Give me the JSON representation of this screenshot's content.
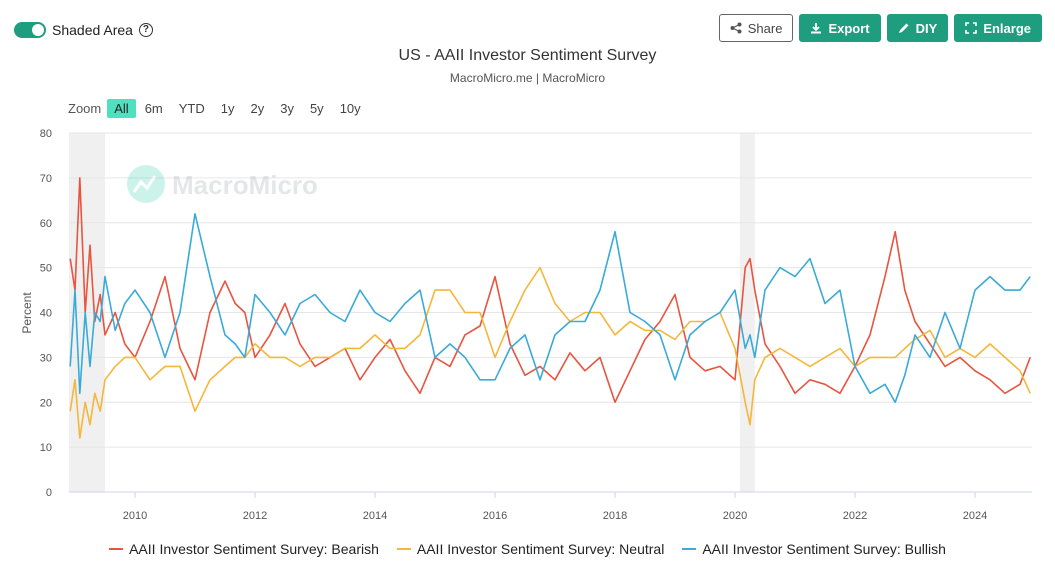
{
  "toggle": {
    "label": "Shaded Area",
    "on": true
  },
  "toolbar": {
    "share": "Share",
    "export": "Export",
    "diy": "DIY",
    "enlarge": "Enlarge"
  },
  "colors": {
    "accent": "#1f9e7f",
    "bearish": "#e8543f",
    "neutral": "#f4b73c",
    "bullish": "#3aaad8",
    "shade": "#f0f0f0"
  },
  "zoom": {
    "label": "Zoom",
    "options": [
      "All",
      "6m",
      "YTD",
      "1y",
      "2y",
      "3y",
      "5y",
      "10y"
    ],
    "active": "All"
  },
  "watermark": "MacroMicro",
  "chart_data": {
    "type": "line",
    "title": "US - AAII Investor Sentiment Survey",
    "subtitle": "MacroMicro.me | MacroMicro",
    "ylabel": "Percent",
    "xlim": [
      2008.9,
      2024.95
    ],
    "ylim": [
      0,
      80
    ],
    "yticks": [
      0,
      10,
      20,
      30,
      40,
      50,
      60,
      70,
      80
    ],
    "xticks": [
      2010,
      2012,
      2014,
      2016,
      2018,
      2020,
      2022,
      2024
    ],
    "shaded_periods": [
      [
        2008.9,
        2009.5
      ],
      [
        2020.08,
        2020.33
      ]
    ],
    "grid": true,
    "legend_position": "bottom",
    "series": [
      {
        "name": "AAII Investor Sentiment Survey: Bearish",
        "color": "#e8543f",
        "x": [
          2008.92,
          2009.0,
          2009.08,
          2009.17,
          2009.25,
          2009.33,
          2009.42,
          2009.5,
          2009.67,
          2009.83,
          2010.0,
          2010.25,
          2010.5,
          2010.75,
          2011.0,
          2011.25,
          2011.5,
          2011.67,
          2011.83,
          2012.0,
          2012.25,
          2012.5,
          2012.75,
          2013.0,
          2013.25,
          2013.5,
          2013.75,
          2014.0,
          2014.25,
          2014.5,
          2014.75,
          2015.0,
          2015.25,
          2015.5,
          2015.75,
          2016.0,
          2016.25,
          2016.5,
          2016.75,
          2017.0,
          2017.25,
          2017.5,
          2017.75,
          2018.0,
          2018.25,
          2018.5,
          2018.75,
          2019.0,
          2019.25,
          2019.5,
          2019.75,
          2020.0,
          2020.17,
          2020.25,
          2020.33,
          2020.5,
          2020.75,
          2021.0,
          2021.25,
          2021.5,
          2021.75,
          2022.0,
          2022.25,
          2022.5,
          2022.67,
          2022.83,
          2023.0,
          2023.25,
          2023.5,
          2023.75,
          2024.0,
          2024.25,
          2024.5,
          2024.75,
          2024.92
        ],
        "values": [
          52,
          45,
          70,
          40,
          55,
          38,
          44,
          35,
          40,
          33,
          30,
          38,
          48,
          32,
          25,
          40,
          47,
          42,
          40,
          30,
          35,
          42,
          33,
          28,
          30,
          32,
          25,
          30,
          34,
          27,
          22,
          30,
          28,
          35,
          37,
          48,
          33,
          26,
          28,
          25,
          31,
          27,
          30,
          20,
          27,
          34,
          38,
          44,
          30,
          27,
          28,
          25,
          50,
          52,
          45,
          33,
          28,
          22,
          25,
          24,
          22,
          28,
          35,
          48,
          58,
          45,
          38,
          33,
          28,
          30,
          27,
          25,
          22,
          24,
          30
        ]
      },
      {
        "name": "AAII Investor Sentiment Survey: Neutral",
        "color": "#f4b73c",
        "x": [
          2008.92,
          2009.0,
          2009.08,
          2009.17,
          2009.25,
          2009.33,
          2009.42,
          2009.5,
          2009.67,
          2009.83,
          2010.0,
          2010.25,
          2010.5,
          2010.75,
          2011.0,
          2011.25,
          2011.5,
          2011.67,
          2011.83,
          2012.0,
          2012.25,
          2012.5,
          2012.75,
          2013.0,
          2013.25,
          2013.5,
          2013.75,
          2014.0,
          2014.25,
          2014.5,
          2014.75,
          2015.0,
          2015.25,
          2015.5,
          2015.75,
          2016.0,
          2016.25,
          2016.5,
          2016.75,
          2017.0,
          2017.25,
          2017.5,
          2017.75,
          2018.0,
          2018.25,
          2018.5,
          2018.75,
          2019.0,
          2019.25,
          2019.5,
          2019.75,
          2020.0,
          2020.17,
          2020.25,
          2020.33,
          2020.5,
          2020.75,
          2021.0,
          2021.25,
          2021.5,
          2021.75,
          2022.0,
          2022.25,
          2022.5,
          2022.67,
          2022.83,
          2023.0,
          2023.25,
          2023.5,
          2023.75,
          2024.0,
          2024.25,
          2024.5,
          2024.75,
          2024.92
        ],
        "values": [
          18,
          25,
          12,
          20,
          15,
          22,
          18,
          25,
          28,
          30,
          30,
          25,
          28,
          28,
          18,
          25,
          28,
          30,
          30,
          33,
          30,
          30,
          28,
          30,
          30,
          32,
          32,
          35,
          32,
          32,
          35,
          45,
          45,
          40,
          40,
          30,
          38,
          45,
          50,
          42,
          38,
          40,
          40,
          35,
          38,
          36,
          36,
          34,
          38,
          38,
          40,
          32,
          20,
          15,
          25,
          30,
          32,
          30,
          28,
          30,
          32,
          28,
          30,
          30,
          30,
          32,
          34,
          36,
          30,
          32,
          30,
          33,
          30,
          27,
          22
        ]
      },
      {
        "name": "AAII Investor Sentiment Survey: Bullish",
        "color": "#3aaad8",
        "x": [
          2008.92,
          2009.0,
          2009.08,
          2009.17,
          2009.25,
          2009.33,
          2009.42,
          2009.5,
          2009.67,
          2009.83,
          2010.0,
          2010.25,
          2010.5,
          2010.75,
          2011.0,
          2011.25,
          2011.5,
          2011.67,
          2011.83,
          2012.0,
          2012.25,
          2012.5,
          2012.75,
          2013.0,
          2013.25,
          2013.5,
          2013.75,
          2014.0,
          2014.25,
          2014.5,
          2014.75,
          2015.0,
          2015.25,
          2015.5,
          2015.75,
          2016.0,
          2016.25,
          2016.5,
          2016.75,
          2017.0,
          2017.25,
          2017.5,
          2017.75,
          2018.0,
          2018.25,
          2018.5,
          2018.75,
          2019.0,
          2019.25,
          2019.5,
          2019.75,
          2020.0,
          2020.17,
          2020.25,
          2020.33,
          2020.5,
          2020.75,
          2021.0,
          2021.25,
          2021.5,
          2021.75,
          2022.0,
          2022.25,
          2022.5,
          2022.67,
          2022.83,
          2023.0,
          2023.25,
          2023.5,
          2023.75,
          2024.0,
          2024.25,
          2024.5,
          2024.75,
          2024.92
        ],
        "values": [
          28,
          45,
          22,
          40,
          28,
          40,
          38,
          48,
          36,
          42,
          45,
          40,
          30,
          40,
          62,
          48,
          35,
          33,
          30,
          44,
          40,
          35,
          42,
          44,
          40,
          38,
          45,
          40,
          38,
          42,
          45,
          30,
          33,
          30,
          25,
          25,
          32,
          35,
          25,
          35,
          38,
          38,
          45,
          58,
          40,
          38,
          35,
          25,
          35,
          38,
          40,
          45,
          32,
          35,
          30,
          45,
          50,
          48,
          52,
          42,
          45,
          28,
          22,
          24,
          20,
          26,
          35,
          30,
          40,
          32,
          45,
          48,
          45,
          45,
          48
        ]
      }
    ]
  }
}
